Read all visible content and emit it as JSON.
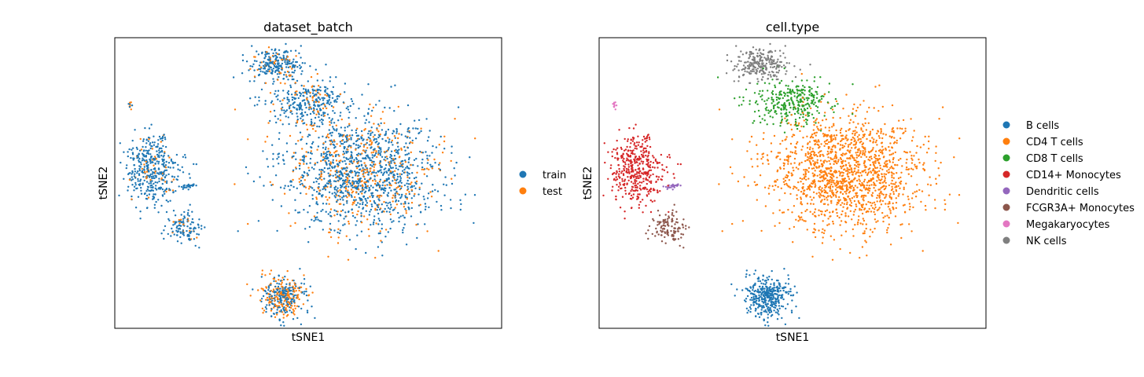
{
  "chart_data": [
    {
      "type": "scatter",
      "title": "dataset_batch",
      "xlabel": "tSNE1",
      "ylabel": "tSNE2",
      "xlim": [
        -48,
        52
      ],
      "ylim": [
        -45,
        45
      ],
      "grid": false,
      "legend_placement": "right",
      "series": [
        {
          "name": "train",
          "color": "#1f77b4"
        },
        {
          "name": "test",
          "color": "#ff7f0e"
        }
      ],
      "clusters": [
        {
          "label": "NK cells",
          "center": [
            -6,
            37
          ],
          "spread": [
            3.6,
            2.6
          ],
          "n": 260,
          "composition": {
            "train": 0.85,
            "test": 0.15
          }
        },
        {
          "label": "CD8 T cells",
          "center": [
            2,
            25
          ],
          "spread": [
            5,
            3.5
          ],
          "n": 320,
          "composition": {
            "train": 0.86,
            "test": 0.14
          }
        },
        {
          "label": "CD4 T cells",
          "center": [
            16,
            3
          ],
          "spread": [
            10,
            8.5
          ],
          "n": 1500,
          "composition": {
            "train": 0.72,
            "test": 0.28
          }
        },
        {
          "label": "CD14+ Monocytes",
          "center": [
            -38,
            4
          ],
          "spread": [
            3.4,
            5.2
          ],
          "n": 420,
          "composition": {
            "train": 0.9,
            "test": 0.1
          }
        },
        {
          "label": "Dendritic cells",
          "center": [
            -29,
            -1
          ],
          "spread": [
            1,
            0.5
          ],
          "n": 25,
          "composition": {
            "train": 1,
            "test": 0
          }
        },
        {
          "label": "FCGR3A+ Monocytes",
          "center": [
            -30,
            -14
          ],
          "spread": [
            2,
            2.2
          ],
          "n": 120,
          "composition": {
            "train": 0.88,
            "test": 0.12
          }
        },
        {
          "label": "Megakaryocytes",
          "center": [
            -44,
            24
          ],
          "spread": [
            0.4,
            0.8
          ],
          "n": 10,
          "composition": {
            "train": 0.5,
            "test": 0.5
          }
        },
        {
          "label": "B cells",
          "center": [
            -4,
            -35
          ],
          "spread": [
            3.2,
            3.4
          ],
          "n": 380,
          "composition": {
            "train": 0.6,
            "test": 0.4
          }
        }
      ]
    },
    {
      "type": "scatter",
      "title": "cell.type",
      "xlabel": "tSNE1",
      "ylabel": "tSNE2",
      "xlim": [
        -48,
        52
      ],
      "ylim": [
        -45,
        45
      ],
      "grid": false,
      "legend_placement": "right",
      "series": [
        {
          "name": "B cells",
          "color": "#1f77b4"
        },
        {
          "name": "CD4 T cells",
          "color": "#ff7f0e"
        },
        {
          "name": "CD8 T cells",
          "color": "#2ca02c"
        },
        {
          "name": "CD14+ Monocytes",
          "color": "#d62728"
        },
        {
          "name": "Dendritic cells",
          "color": "#9467bd"
        },
        {
          "name": "FCGR3A+ Monocytes",
          "color": "#8c564b"
        },
        {
          "name": "Megakaryocytes",
          "color": "#e377c2"
        },
        {
          "name": "NK cells",
          "color": "#7f7f7f"
        }
      ]
    }
  ]
}
